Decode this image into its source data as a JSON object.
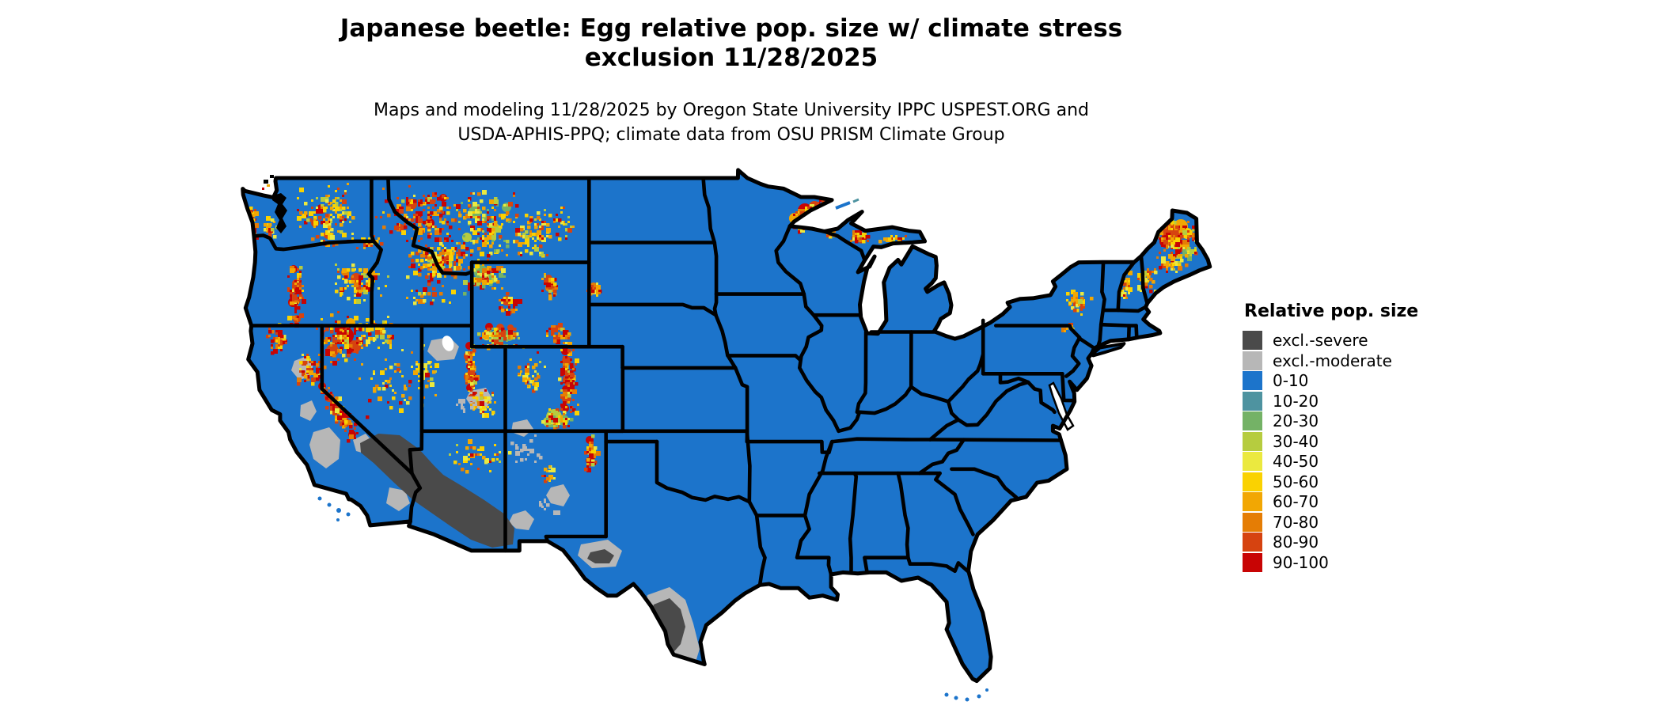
{
  "title": {
    "line1": "Japanese beetle: Egg relative pop. size w/ climate stress",
    "line2": "exclusion 11/28/2025"
  },
  "subtitle": {
    "line1": "Maps and modeling 11/28/2025 by Oregon State University IPPC USPEST.ORG and",
    "line2": "USDA-APHIS-PPQ; climate data from OSU PRISM Climate Group"
  },
  "legend": {
    "title": "Relative pop. size",
    "items": [
      {
        "label": "excl.-severe",
        "color": "#4a4a4a"
      },
      {
        "label": "excl.-moderate",
        "color": "#b7b7b7"
      },
      {
        "label": "0-10",
        "color": "#1c74cb"
      },
      {
        "label": "10-20",
        "color": "#4e93a0"
      },
      {
        "label": "20-30",
        "color": "#74b266"
      },
      {
        "label": "30-40",
        "color": "#b6cc3f"
      },
      {
        "label": "40-50",
        "color": "#ebe93f"
      },
      {
        "label": "50-60",
        "color": "#fad201"
      },
      {
        "label": "60-70",
        "color": "#f2a703"
      },
      {
        "label": "70-80",
        "color": "#e57d05"
      },
      {
        "label": "80-90",
        "color": "#d64310"
      },
      {
        "label": "90-100",
        "color": "#c80404"
      }
    ]
  },
  "map": {
    "region": "Contiguous United States",
    "base_color": "#1c74cb",
    "state_border_color": "#000000",
    "water_color": "#ffffff",
    "hotspot_regions": [
      "Washington Cascades and Olympic coast",
      "Northern Idaho / Northwest Montana Rockies",
      "Oregon Cascades and Blue Mountains",
      "Sierra Nevada (California)",
      "Wasatch and Uinta ranges (Utah)",
      "Yellowstone / Wind River / Bighorn (Wyoming)",
      "Colorado Front Range and San Juans",
      "Sangre de Cristo (New Mexico)",
      "Black Hills (South Dakota)",
      "Lake Superior north shore (Minnesota)",
      "Upper Peninsula Michigan",
      "Northern Maine",
      "White Mountains / Green Mountains / Adirondacks"
    ],
    "exclusion_regions": [
      "Mojave and Sonoran Deserts (severe)",
      "Southern California Central Valley (moderate)",
      "Great Salt Lake Desert (moderate)",
      "West Texas (moderate/severe)",
      "South Texas along Rio Grande (severe with moderate fringe)"
    ]
  }
}
